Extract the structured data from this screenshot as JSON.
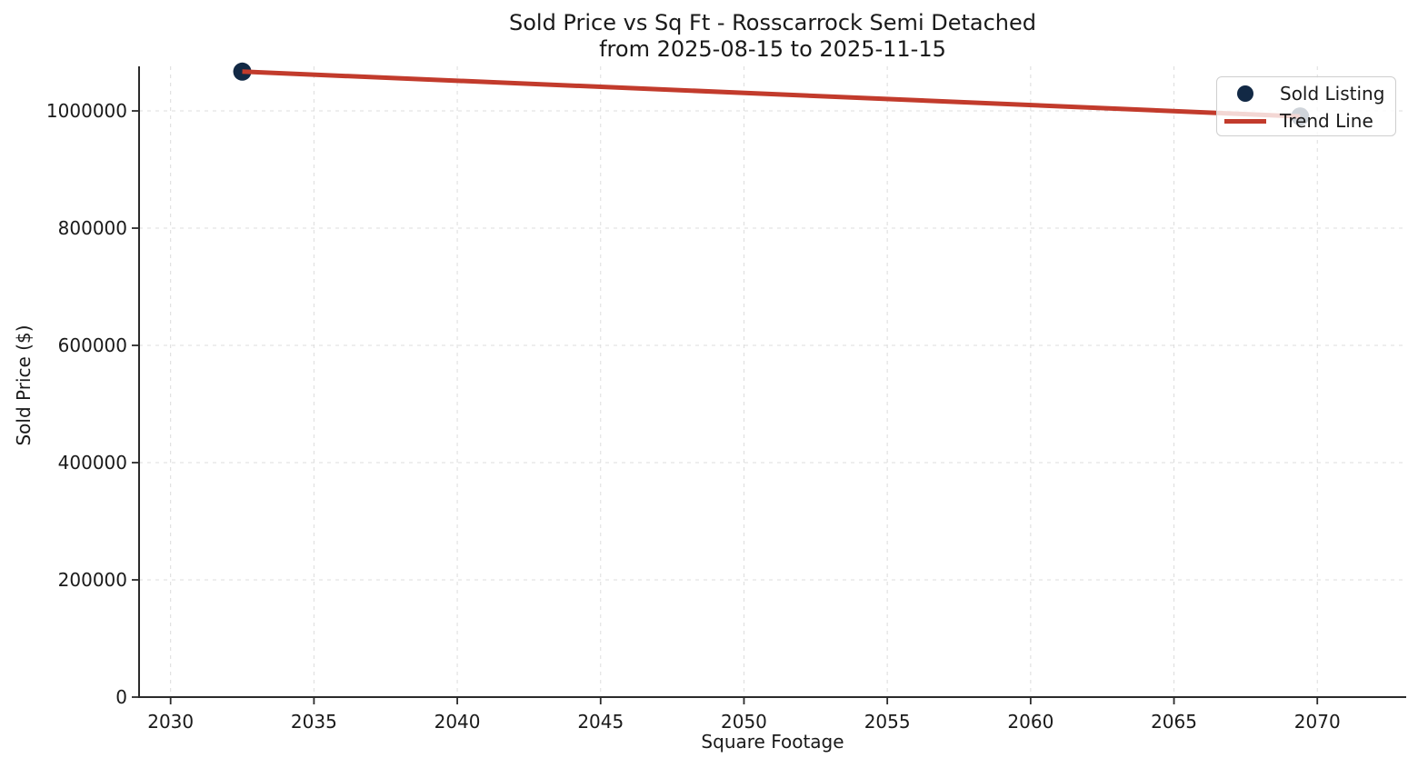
{
  "chart_data": {
    "type": "scatter",
    "title": "Sold Price vs Sq Ft - Rosscarrock Semi Detached",
    "subtitle": "from 2025-08-15 to 2025-11-15",
    "xlabel": "Square Footage",
    "ylabel": "Sold Price ($)",
    "xlim": [
      2028.9,
      2073.1
    ],
    "ylim": [
      0,
      1076000
    ],
    "xticks": [
      2030,
      2035,
      2040,
      2045,
      2050,
      2055,
      2060,
      2065,
      2070
    ],
    "yticks": [
      0,
      200000,
      400000,
      600000,
      800000,
      1000000
    ],
    "grid": {
      "visible": true,
      "style": "dashed",
      "color": "#dcdcdc"
    },
    "colors": {
      "point": "#122945",
      "trend": "#c23b2c",
      "axis": "#2b2b2b",
      "text": "#1a1a1a",
      "background": "#ffffff"
    },
    "legend": {
      "position": "upper-right",
      "items": [
        {
          "label": "Sold Listing",
          "marker": "dot",
          "color": "#122945"
        },
        {
          "label": "Trend Line",
          "marker": "line",
          "color": "#c23b2c"
        }
      ]
    },
    "series": [
      {
        "name": "Sold Listing",
        "kind": "scatter",
        "color": "#122945",
        "points": [
          {
            "sqft": 2032.5,
            "price": 1067000
          },
          {
            "sqft": 2069.4,
            "price": 990500
          }
        ]
      },
      {
        "name": "Trend Line",
        "kind": "line",
        "color": "#c23b2c",
        "points": [
          {
            "sqft": 2032.5,
            "price": 1067000
          },
          {
            "sqft": 2069.4,
            "price": 990500
          }
        ]
      }
    ]
  }
}
